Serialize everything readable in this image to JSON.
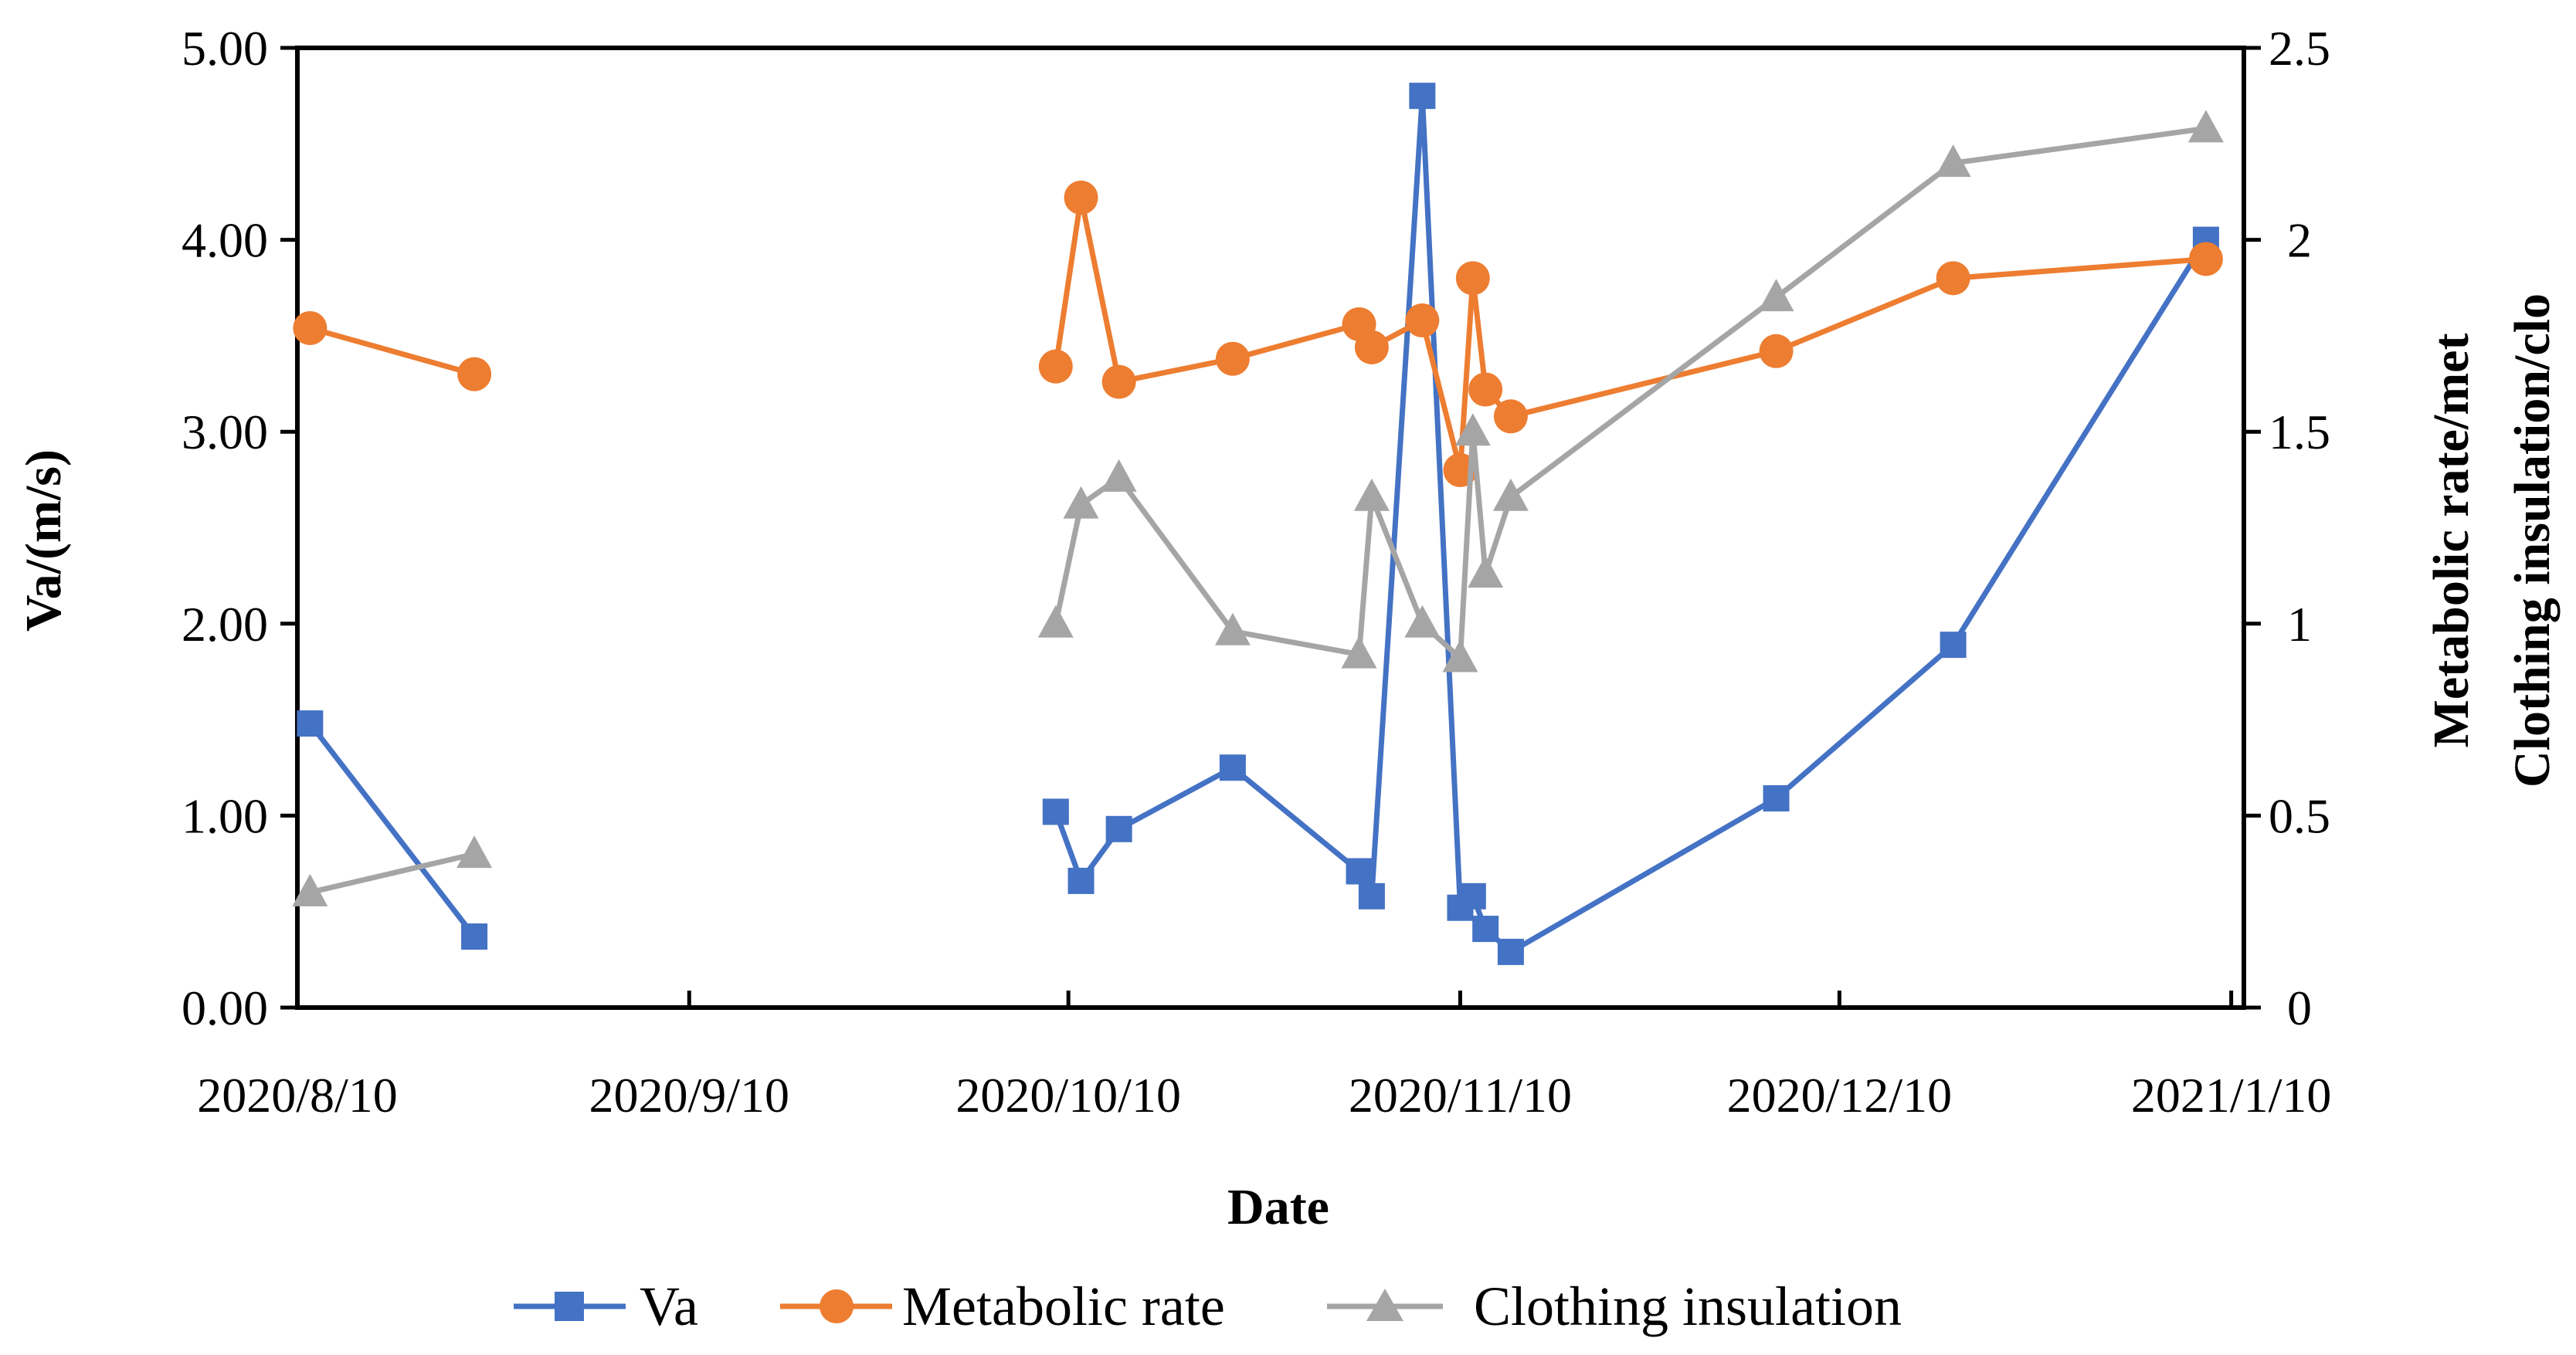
{
  "chart_data": {
    "type": "line",
    "title": "",
    "xlabel": "Date",
    "ylabel": "Va/(m/s)",
    "y2label_line1": "Metabolic rate/met",
    "y2label_line2": "Clothing insulation/clo",
    "x_ticks": [
      {
        "label": "2020/8/10",
        "day": 0
      },
      {
        "label": "2020/9/10",
        "day": 31
      },
      {
        "label": "2020/10/10",
        "day": 61
      },
      {
        "label": "2020/11/10",
        "day": 92
      },
      {
        "label": "2020/12/10",
        "day": 122
      },
      {
        "label": "2021/1/10",
        "day": 153
      }
    ],
    "xlim_days": [
      0,
      154
    ],
    "ylim": [
      0,
      5
    ],
    "y_ticks": [
      "0.00",
      "1.00",
      "2.00",
      "3.00",
      "4.00",
      "5.00"
    ],
    "y2lim": [
      0,
      2.5
    ],
    "y2_ticks": [
      "0",
      "0.5",
      "1",
      "1.5",
      "2",
      "2.5"
    ],
    "legend_position": "bottom",
    "series": [
      {
        "name": "Va",
        "axis": "left",
        "color": "#4472C4",
        "marker": "square",
        "segments": [
          [
            [
              1,
              1.48
            ],
            [
              14,
              0.37
            ]
          ],
          [
            [
              60,
              1.02
            ],
            [
              62,
              0.66
            ],
            [
              65,
              0.93
            ],
            [
              74,
              1.25
            ],
            [
              84,
              0.71
            ],
            [
              85,
              0.58
            ],
            [
              89,
              4.75
            ],
            [
              92,
              0.52
            ],
            [
              93,
              0.58
            ],
            [
              94,
              0.41
            ],
            [
              96,
              0.29
            ],
            [
              117,
              1.09
            ],
            [
              131,
              1.89
            ],
            [
              151,
              4.0
            ]
          ]
        ]
      },
      {
        "name": "Metabolic rate",
        "axis": "right",
        "color": "#ED7D31",
        "marker": "circle",
        "segments": [
          [
            [
              1,
              1.77
            ],
            [
              14,
              1.65
            ]
          ],
          [
            [
              60,
              1.67
            ],
            [
              62,
              2.11
            ],
            [
              65,
              1.63
            ],
            [
              74,
              1.69
            ],
            [
              84,
              1.78
            ],
            [
              85,
              1.72
            ],
            [
              89,
              1.79
            ],
            [
              92,
              1.4
            ],
            [
              93,
              1.9
            ],
            [
              94,
              1.61
            ],
            [
              96,
              1.54
            ],
            [
              117,
              1.71
            ],
            [
              131,
              1.9
            ],
            [
              151,
              1.95
            ]
          ]
        ]
      },
      {
        "name": "Clothing insulation",
        "axis": "right",
        "color": "#A5A5A5",
        "marker": "triangle",
        "segments": [
          [
            [
              1,
              0.3
            ],
            [
              14,
              0.4
            ]
          ],
          [
            [
              60,
              1.0
            ],
            [
              62,
              1.31
            ],
            [
              65,
              1.38
            ],
            [
              74,
              0.98
            ],
            [
              84,
              0.92
            ],
            [
              85,
              1.33
            ],
            [
              89,
              1.0
            ],
            [
              92,
              0.91
            ],
            [
              93,
              1.5
            ],
            [
              94,
              1.13
            ],
            [
              96,
              1.33
            ],
            [
              117,
              1.85
            ],
            [
              131,
              2.2
            ],
            [
              151,
              2.29
            ]
          ]
        ]
      }
    ]
  }
}
